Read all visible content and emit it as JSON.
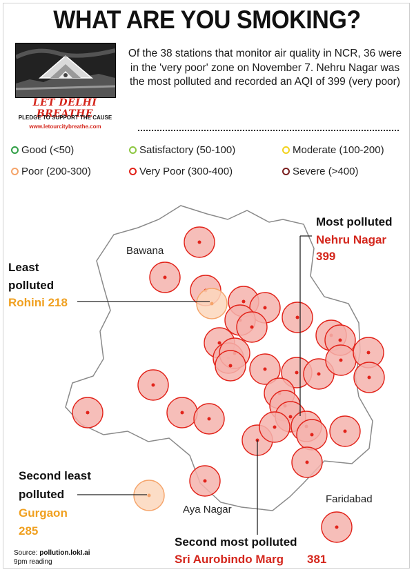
{
  "title": "WHAT ARE YOU SMOKING?",
  "logo": {
    "name": "LET DELHI BREATHE",
    "pledge": "PLEDGE TO SUPPORT THE CAUSE",
    "url": "www.letourcitybreathe.com"
  },
  "intro": "Of the 38 stations that monitor air quality in NCR, 36 were in the 'very poor' zone on November 7. Nehru Nagar was the most polluted and recorded an AQI of 399 (very poor)",
  "legend": [
    {
      "label": "Good (<50)",
      "color": "#2e9e44"
    },
    {
      "label": "Satisfactory (50-100)",
      "color": "#8cc63f"
    },
    {
      "label": "Moderate (100-200)",
      "color": "#f2d21b"
    },
    {
      "label": "Poor (200-300)",
      "color": "#f5a46a"
    },
    {
      "label": "Very Poor (300-400)",
      "color": "#e2231a"
    },
    {
      "label": "Severe (>400)",
      "color": "#7a1f1f"
    }
  ],
  "places": {
    "bawana": "Bawana",
    "aya_nagar": "Aya Nagar",
    "faridabad": "Faridabad"
  },
  "callouts": {
    "most_polluted_title": "Most polluted",
    "most_polluted_name": "Nehru Nagar",
    "most_polluted_value": "399",
    "least_title_1": "Least",
    "least_title_2": "polluted",
    "least_name": "Rohini 218",
    "second_least_title_1": "Second least",
    "second_least_title_2": "polluted",
    "second_least_name": "Gurgaon",
    "second_least_value": "285",
    "second_most_title": "Second most polluted",
    "second_most_name": "Sri Aurobindo Marg",
    "second_most_value": "381"
  },
  "source_label": "Source:",
  "source_value": "pollution.lokI.ai",
  "reading": "9pm reading"
}
